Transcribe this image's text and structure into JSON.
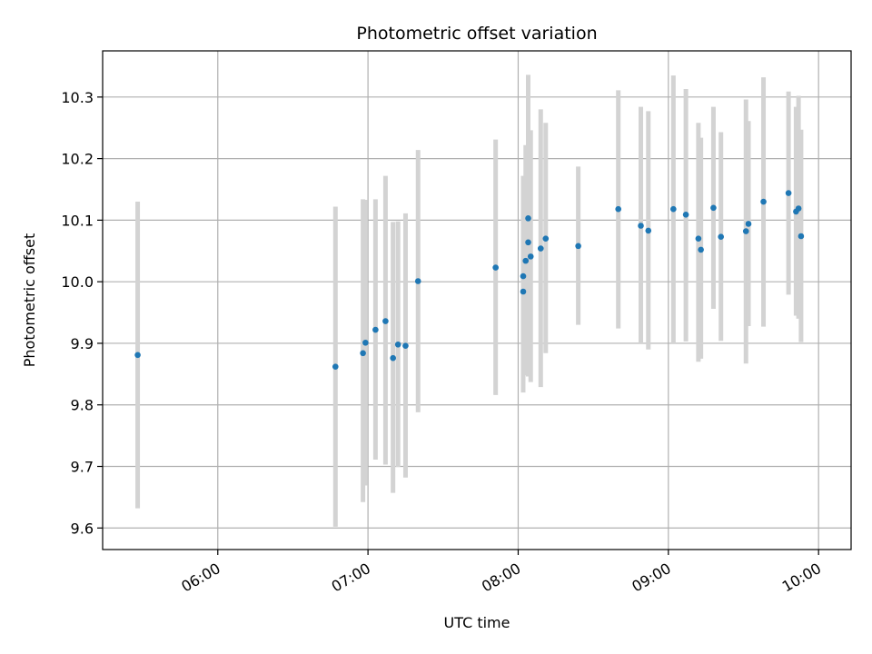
{
  "chart_data": {
    "type": "scatter",
    "title": "Photometric offset variation",
    "xlabel": "UTC time",
    "ylabel": "Photometric offset",
    "x_axis_kind": "time",
    "xlim": [
      "05:14",
      "10:13"
    ],
    "ylim": [
      9.565,
      10.375
    ],
    "grid": true,
    "x_ticks": [
      {
        "value": "06:00",
        "label": "06:00"
      },
      {
        "value": "07:00",
        "label": "07:00"
      },
      {
        "value": "08:00",
        "label": "08:00"
      },
      {
        "value": "09:00",
        "label": "09:00"
      },
      {
        "value": "10:00",
        "label": "10:00"
      }
    ],
    "y_ticks": [
      {
        "value": 9.6,
        "label": "9.6"
      },
      {
        "value": 9.7,
        "label": "9.7"
      },
      {
        "value": 9.8,
        "label": "9.8"
      },
      {
        "value": 9.9,
        "label": "9.9"
      },
      {
        "value": 10.0,
        "label": "10.0"
      },
      {
        "value": 10.1,
        "label": "10.1"
      },
      {
        "value": 10.2,
        "label": "10.2"
      },
      {
        "value": 10.3,
        "label": "10.3"
      }
    ],
    "colors": {
      "point": "#1f77b4",
      "errorbar": "#d3d3d3",
      "grid": "#b0b0b0"
    },
    "points": [
      {
        "time": "05:28",
        "y": 9.881,
        "low": 9.632,
        "high": 10.13
      },
      {
        "time": "06:47",
        "y": 9.862,
        "low": 9.602,
        "high": 10.122
      },
      {
        "time": "06:58",
        "y": 9.884,
        "low": 9.642,
        "high": 10.134
      },
      {
        "time": "06:59",
        "y": 9.901,
        "low": 9.669,
        "high": 10.133
      },
      {
        "time": "07:03",
        "y": 9.922,
        "low": 9.711,
        "high": 10.134
      },
      {
        "time": "07:07",
        "y": 9.936,
        "low": 9.703,
        "high": 10.172
      },
      {
        "time": "07:10",
        "y": 9.876,
        "low": 9.657,
        "high": 10.097
      },
      {
        "time": "07:12",
        "y": 9.898,
        "low": 9.699,
        "high": 10.098
      },
      {
        "time": "07:15",
        "y": 9.896,
        "low": 9.682,
        "high": 10.111
      },
      {
        "time": "07:20",
        "y": 10.001,
        "low": 9.788,
        "high": 10.214
      },
      {
        "time": "07:51",
        "y": 10.023,
        "low": 9.816,
        "high": 10.231
      },
      {
        "time": "08:02",
        "y": 9.984,
        "low": 9.82,
        "high": 10.148
      },
      {
        "time": "08:02",
        "y": 10.009,
        "low": 9.84,
        "high": 10.172
      },
      {
        "time": "08:03",
        "y": 10.034,
        "low": 9.848,
        "high": 10.222
      },
      {
        "time": "08:04",
        "y": 10.103,
        "low": 9.87,
        "high": 10.336
      },
      {
        "time": "08:04",
        "y": 10.064,
        "low": 9.846,
        "high": 10.282
      },
      {
        "time": "08:05",
        "y": 10.041,
        "low": 9.837,
        "high": 10.246
      },
      {
        "time": "08:09",
        "y": 10.054,
        "low": 9.829,
        "high": 10.28
      },
      {
        "time": "08:11",
        "y": 10.07,
        "low": 9.884,
        "high": 10.258
      },
      {
        "time": "08:24",
        "y": 10.058,
        "low": 9.93,
        "high": 10.187
      },
      {
        "time": "08:40",
        "y": 10.118,
        "low": 9.924,
        "high": 10.311
      },
      {
        "time": "08:49",
        "y": 10.091,
        "low": 9.9,
        "high": 10.284
      },
      {
        "time": "08:52",
        "y": 10.083,
        "low": 9.89,
        "high": 10.277
      },
      {
        "time": "09:02",
        "y": 10.118,
        "low": 9.9,
        "high": 10.335
      },
      {
        "time": "09:07",
        "y": 10.109,
        "low": 9.903,
        "high": 10.313
      },
      {
        "time": "09:12",
        "y": 10.07,
        "low": 9.87,
        "high": 10.258
      },
      {
        "time": "09:13",
        "y": 10.052,
        "low": 9.875,
        "high": 10.234
      },
      {
        "time": "09:18",
        "y": 10.12,
        "low": 9.956,
        "high": 10.284
      },
      {
        "time": "09:21",
        "y": 10.073,
        "low": 9.904,
        "high": 10.243
      },
      {
        "time": "09:31",
        "y": 10.082,
        "low": 9.867,
        "high": 10.296
      },
      {
        "time": "09:32",
        "y": 10.094,
        "low": 9.928,
        "high": 10.261
      },
      {
        "time": "09:38",
        "y": 10.13,
        "low": 9.927,
        "high": 10.332
      },
      {
        "time": "09:48",
        "y": 10.144,
        "low": 9.979,
        "high": 10.309
      },
      {
        "time": "09:51",
        "y": 10.114,
        "low": 9.945,
        "high": 10.284
      },
      {
        "time": "09:52",
        "y": 10.119,
        "low": 9.94,
        "high": 10.302
      },
      {
        "time": "09:53",
        "y": 10.074,
        "low": 9.902,
        "high": 10.247
      }
    ]
  }
}
